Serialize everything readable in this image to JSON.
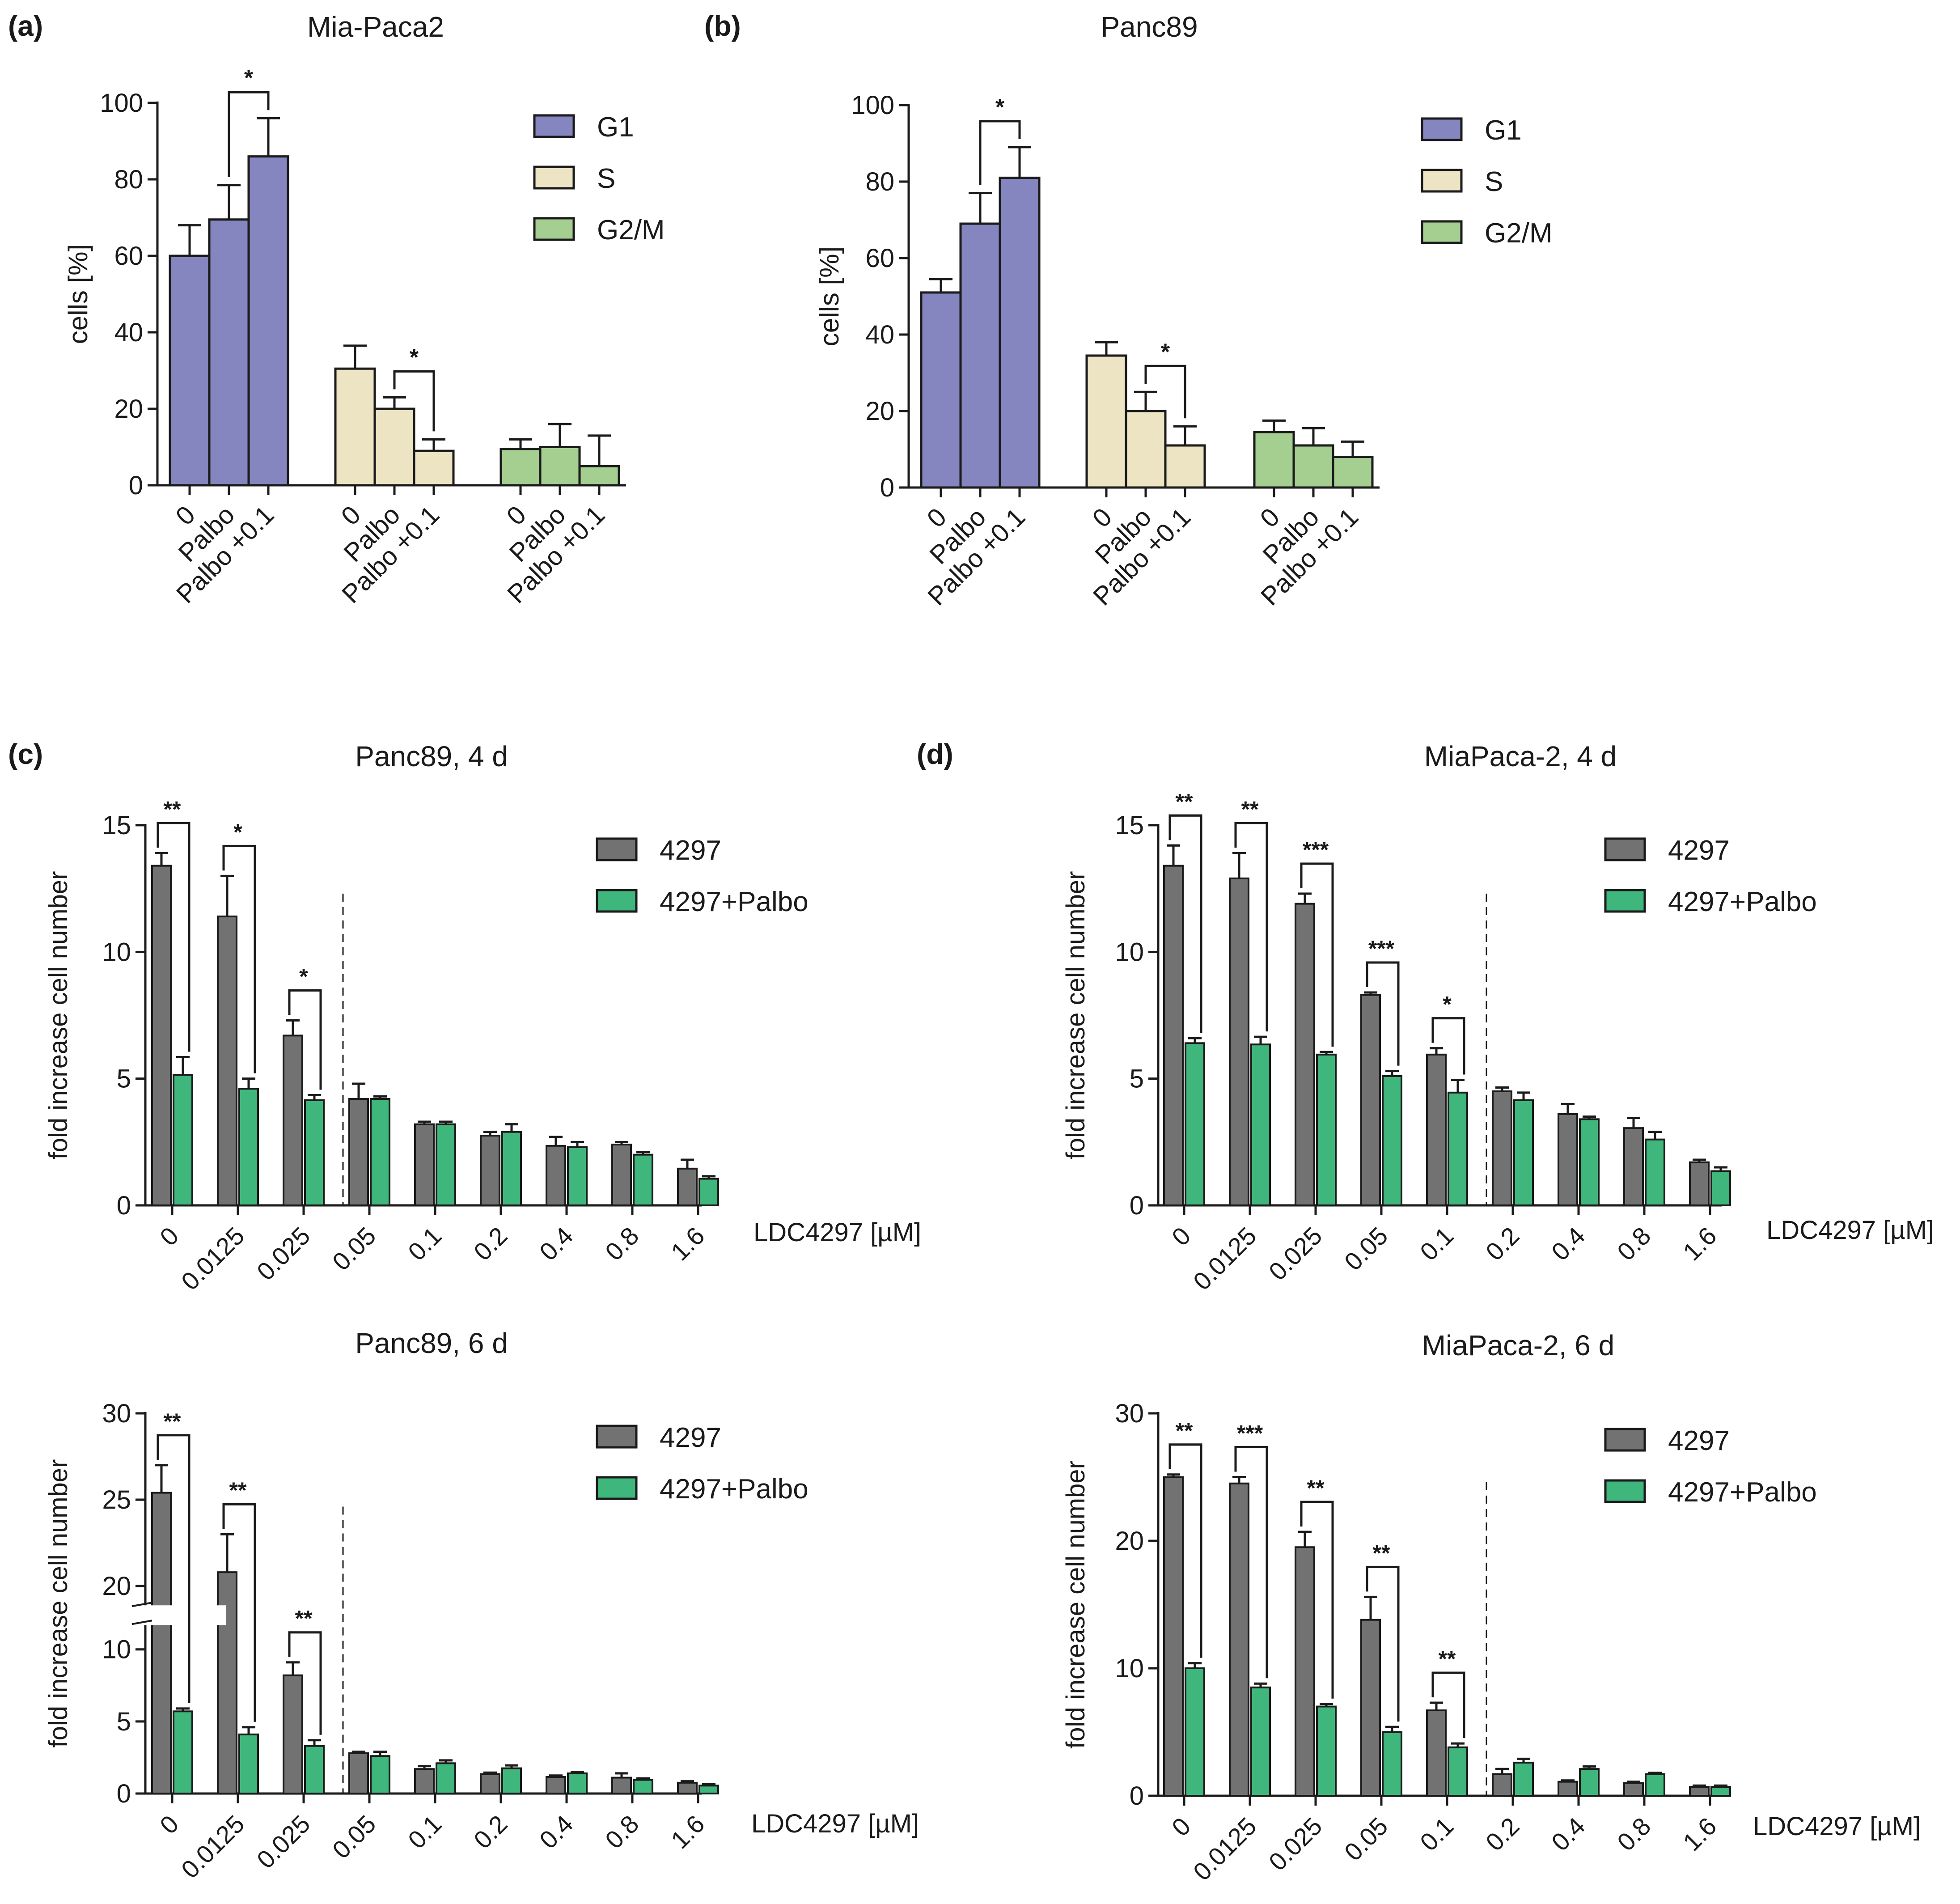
{
  "figure": {
    "panels": {
      "a": {
        "label": "(a)",
        "title": "Mia-Paca2"
      },
      "b": {
        "label": "(b)",
        "title": "Panc89"
      },
      "c": {
        "label": "(c)"
      },
      "d": {
        "label": "(d)"
      }
    }
  },
  "colors": {
    "G1": "#8585bf",
    "S": "#ece4c3",
    "G2M": "#a4cf90",
    "drug": "#727272",
    "combo": "#3fb77c",
    "axis": "#1a1a1a"
  },
  "chart_data": [
    {
      "id": "a",
      "type": "bar",
      "title": "Mia-Paca2",
      "ylabel": "cells [%]",
      "ylim": [
        0,
        100
      ],
      "yticks": [
        0,
        20,
        40,
        60,
        80,
        100
      ],
      "groups": [
        "G1",
        "S",
        "G2/M"
      ],
      "categories": [
        "0",
        "Palbo",
        "Palbo +0.1"
      ],
      "series": [
        {
          "name": "G1",
          "values": [
            60,
            69.5,
            86
          ],
          "errors": [
            8,
            9,
            10
          ]
        },
        {
          "name": "S",
          "values": [
            30.5,
            20,
            9
          ],
          "errors": [
            6,
            3,
            3
          ]
        },
        {
          "name": "G2/M",
          "values": [
            9.5,
            10,
            5
          ],
          "errors": [
            2.5,
            6,
            8
          ]
        }
      ],
      "legend": [
        "G1",
        "S",
        "G2/M"
      ],
      "significance": [
        {
          "group": 0,
          "from": 1,
          "to": 2,
          "label": "*"
        },
        {
          "group": 1,
          "from": 1,
          "to": 2,
          "label": "*"
        }
      ]
    },
    {
      "id": "b",
      "type": "bar",
      "title": "Panc89",
      "ylabel": "cells [%]",
      "ylim": [
        0,
        100
      ],
      "yticks": [
        0,
        20,
        40,
        60,
        80,
        100
      ],
      "groups": [
        "G1",
        "S",
        "G2/M"
      ],
      "categories": [
        "0",
        "Palbo",
        "Palbo +0.1"
      ],
      "series": [
        {
          "name": "G1",
          "values": [
            51,
            69,
            81
          ],
          "errors": [
            3.5,
            8,
            8
          ]
        },
        {
          "name": "S",
          "values": [
            34.5,
            20,
            11
          ],
          "errors": [
            3.5,
            5,
            5
          ]
        },
        {
          "name": "G2/M",
          "values": [
            14.5,
            11,
            8
          ],
          "errors": [
            3,
            4.5,
            4
          ]
        }
      ],
      "legend": [
        "G1",
        "S",
        "G2/M"
      ],
      "significance": [
        {
          "group": 0,
          "from": 1,
          "to": 2,
          "label": "*"
        },
        {
          "group": 1,
          "from": 1,
          "to": 2,
          "label": "*"
        }
      ]
    },
    {
      "id": "c4",
      "type": "bar",
      "title": "Panc89, 4 d",
      "xlabel": "LDC4297 [µM]",
      "ylabel": "fold increase cell number",
      "ylim": [
        0,
        15
      ],
      "yticks": [
        0,
        5,
        10,
        15
      ],
      "categories": [
        "0",
        "0.0125",
        "0.025",
        "0.05",
        "0.1",
        "0.2",
        "0.4",
        "0.8",
        "1.6"
      ],
      "series": [
        {
          "name": "4297",
          "values": [
            13.4,
            11.4,
            6.7,
            4.2,
            3.2,
            2.75,
            2.35,
            2.4,
            1.45
          ],
          "errors": [
            0.5,
            1.6,
            0.6,
            0.6,
            0.1,
            0.15,
            0.35,
            0.1,
            0.35
          ]
        },
        {
          "name": "4297+Palbo",
          "values": [
            5.15,
            4.6,
            4.15,
            4.2,
            3.2,
            2.9,
            2.3,
            2.0,
            1.05
          ],
          "errors": [
            0.7,
            0.4,
            0.2,
            0.1,
            0.1,
            0.3,
            0.2,
            0.1,
            0.1
          ]
        }
      ],
      "legend": [
        "4297",
        "4297+Palbo"
      ],
      "divider_after": 2,
      "significance": [
        {
          "cat": 0,
          "label": "**"
        },
        {
          "cat": 1,
          "label": "*"
        },
        {
          "cat": 2,
          "label": "*"
        }
      ]
    },
    {
      "id": "d4",
      "type": "bar",
      "title": "MiaPaca-2, 4 d",
      "xlabel": "LDC4297 [µM]",
      "ylabel": "fold increase cell number",
      "ylim": [
        0,
        15
      ],
      "yticks": [
        0,
        5,
        10,
        15
      ],
      "categories": [
        "0",
        "0.0125",
        "0.025",
        "0.05",
        "0.1",
        "0.2",
        "0.4",
        "0.8",
        "1.6"
      ],
      "series": [
        {
          "name": "4297",
          "values": [
            13.4,
            12.9,
            11.9,
            8.3,
            5.95,
            4.5,
            3.6,
            3.05,
            1.7
          ],
          "errors": [
            0.8,
            1.0,
            0.4,
            0.1,
            0.25,
            0.15,
            0.4,
            0.4,
            0.1
          ]
        },
        {
          "name": "4297+Palbo",
          "values": [
            6.4,
            6.35,
            5.95,
            5.1,
            4.45,
            4.15,
            3.4,
            2.6,
            1.35
          ],
          "errors": [
            0.2,
            0.3,
            0.1,
            0.2,
            0.5,
            0.3,
            0.1,
            0.3,
            0.15
          ]
        }
      ],
      "legend": [
        "4297",
        "4297+Palbo"
      ],
      "divider_after": 4,
      "significance": [
        {
          "cat": 0,
          "label": "**"
        },
        {
          "cat": 1,
          "label": "**"
        },
        {
          "cat": 2,
          "label": "***"
        },
        {
          "cat": 3,
          "label": "***"
        },
        {
          "cat": 4,
          "label": "*"
        }
      ]
    },
    {
      "id": "c6",
      "type": "bar",
      "title": "Panc89, 6 d",
      "xlabel": "LDC4297 [µM]",
      "ylabel": "fold increase cell number",
      "ylim": [
        0,
        30
      ],
      "yticks": [
        0,
        5,
        10,
        20,
        25,
        30
      ],
      "axis_break": [
        12,
        18
      ],
      "categories": [
        "0",
        "0.0125",
        "0.025",
        "0.05",
        "0.1",
        "0.2",
        "0.4",
        "0.8",
        "1.6"
      ],
      "series": [
        {
          "name": "4297",
          "values": [
            25.4,
            20.8,
            8.2,
            2.8,
            1.7,
            1.35,
            1.15,
            1.1,
            0.75
          ],
          "errors": [
            1.6,
            2.2,
            0.9,
            0.1,
            0.2,
            0.1,
            0.1,
            0.3,
            0.1
          ]
        },
        {
          "name": "4297+Palbo",
          "values": [
            5.7,
            4.1,
            3.3,
            2.6,
            2.1,
            1.75,
            1.4,
            0.95,
            0.55
          ],
          "errors": [
            0.2,
            0.5,
            0.4,
            0.3,
            0.2,
            0.2,
            0.1,
            0.1,
            0.1
          ]
        }
      ],
      "legend": [
        "4297",
        "4297+Palbo"
      ],
      "divider_after": 2,
      "significance": [
        {
          "cat": 0,
          "label": "**"
        },
        {
          "cat": 1,
          "label": "**"
        },
        {
          "cat": 2,
          "label": "**"
        }
      ]
    },
    {
      "id": "d6",
      "type": "bar",
      "title": "MiaPaca-2, 6 d",
      "xlabel": "LDC4297 [µM]",
      "ylabel": "fold increase cell number",
      "ylim": [
        0,
        30
      ],
      "yticks": [
        0,
        10,
        20,
        30
      ],
      "categories": [
        "0",
        "0.0125",
        "0.025",
        "0.05",
        "0.1",
        "0.2",
        "0.4",
        "0.8",
        "1.6"
      ],
      "series": [
        {
          "name": "4297",
          "values": [
            25.0,
            24.5,
            19.5,
            13.8,
            6.7,
            1.7,
            1.1,
            1.0,
            0.7
          ],
          "errors": [
            0.2,
            0.5,
            1.2,
            1.8,
            0.6,
            0.4,
            0.1,
            0.1,
            0.1
          ]
        },
        {
          "name": "4297+Palbo",
          "values": [
            10.0,
            8.5,
            7.0,
            5.0,
            3.8,
            2.6,
            2.1,
            1.7,
            0.7
          ],
          "errors": [
            0.4,
            0.3,
            0.2,
            0.4,
            0.3,
            0.3,
            0.2,
            0.1,
            0.1
          ]
        }
      ],
      "legend": [
        "4297",
        "4297+Palbo"
      ],
      "divider_after": 4,
      "significance": [
        {
          "cat": 0,
          "label": "**"
        },
        {
          "cat": 1,
          "label": "***"
        },
        {
          "cat": 2,
          "label": "**"
        },
        {
          "cat": 3,
          "label": "**"
        },
        {
          "cat": 4,
          "label": "**"
        }
      ]
    }
  ]
}
